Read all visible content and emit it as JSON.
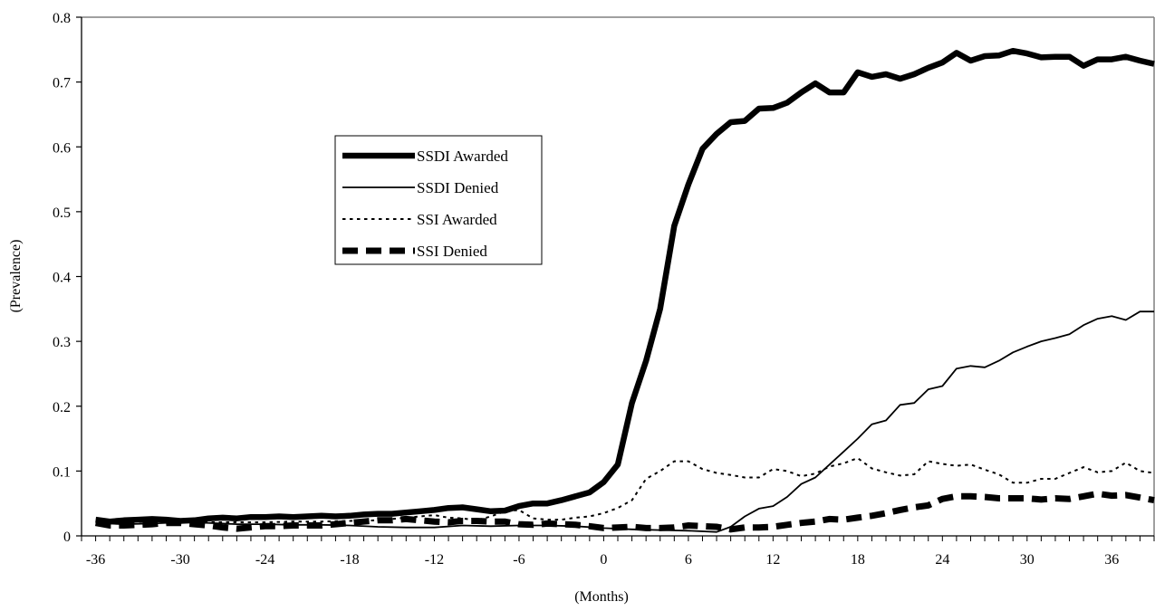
{
  "chart_data": {
    "type": "line",
    "xlabel": "(Months)",
    "ylabel": "(Prevalence)",
    "xlim": [
      -37,
      39
    ],
    "ylim": [
      0,
      0.8
    ],
    "x_ticks": [
      -36,
      -30,
      -24,
      -18,
      -12,
      -6,
      0,
      6,
      12,
      18,
      24,
      30,
      36
    ],
    "x_tick_labels": [
      "-36",
      "-30",
      "-24",
      "-18",
      "-12",
      "-6",
      "0",
      "6",
      "12",
      "18",
      "24",
      "30",
      "36"
    ],
    "y_ticks": [
      0,
      0.1,
      0.2,
      0.3,
      0.4,
      0.5,
      0.6,
      0.7,
      0.8
    ],
    "y_tick_labels": [
      "0",
      "0.1",
      "0.2",
      "0.3",
      "0.4",
      "0.5",
      "0.6",
      "0.7",
      "0.8"
    ],
    "grid": false,
    "legend_position": "upper-left-center",
    "series": [
      {
        "name": "SSDI Awarded",
        "style": "thick-solid",
        "x": [
          -36,
          -35,
          -34,
          -33,
          -32,
          -31,
          -30,
          -29,
          -28,
          -27,
          -26,
          -25,
          -24,
          -23,
          -22,
          -21,
          -20,
          -19,
          -18,
          -17,
          -16,
          -15,
          -14,
          -13,
          -12,
          -11,
          -10,
          -9,
          -8,
          -7,
          -6,
          -5,
          -4,
          -3,
          -2,
          -1,
          0,
          1,
          2,
          3,
          4,
          5,
          6,
          7,
          8,
          9,
          10,
          11,
          12,
          13,
          14,
          15,
          16,
          17,
          18,
          19,
          20,
          21,
          22,
          23,
          24,
          25,
          26,
          27,
          28,
          29,
          30,
          31,
          32,
          33,
          34,
          35,
          36,
          37,
          38,
          39
        ],
        "y": [
          0.025,
          0.022,
          0.024,
          0.025,
          0.026,
          0.025,
          0.023,
          0.024,
          0.027,
          0.028,
          0.027,
          0.029,
          0.029,
          0.03,
          0.029,
          0.03,
          0.031,
          0.03,
          0.031,
          0.033,
          0.034,
          0.034,
          0.036,
          0.038,
          0.04,
          0.043,
          0.044,
          0.041,
          0.038,
          0.039,
          0.046,
          0.05,
          0.05,
          0.055,
          0.061,
          0.067,
          0.083,
          0.11,
          0.205,
          0.27,
          0.35,
          0.478,
          0.542,
          0.597,
          0.62,
          0.638,
          0.64,
          0.659,
          0.66,
          0.668,
          0.684,
          0.698,
          0.684,
          0.684,
          0.715,
          0.708,
          0.712,
          0.705,
          0.712,
          0.722,
          0.73,
          0.745,
          0.733,
          0.74,
          0.741,
          0.748,
          0.744,
          0.738,
          0.739,
          0.739,
          0.725,
          0.735,
          0.735,
          0.739,
          0.733,
          0.728
        ]
      },
      {
        "name": "SSDI Denied",
        "style": "thin-solid",
        "x": [
          -36,
          -34,
          -32,
          -30,
          -28,
          -26,
          -24,
          -22,
          -20,
          -18,
          -16,
          -14,
          -12,
          -10,
          -8,
          -6,
          -4,
          -2,
          0,
          2,
          4,
          6,
          8,
          9,
          10,
          11,
          12,
          13,
          14,
          15,
          16,
          17,
          18,
          19,
          20,
          21,
          22,
          23,
          24,
          25,
          26,
          27,
          28,
          29,
          30,
          31,
          32,
          33,
          34,
          35,
          36,
          37,
          38,
          39
        ],
        "y": [
          0.02,
          0.018,
          0.019,
          0.021,
          0.02,
          0.018,
          0.018,
          0.017,
          0.017,
          0.016,
          0.014,
          0.013,
          0.013,
          0.016,
          0.015,
          0.016,
          0.016,
          0.015,
          0.012,
          0.01,
          0.009,
          0.008,
          0.006,
          0.014,
          0.03,
          0.042,
          0.046,
          0.06,
          0.08,
          0.09,
          0.11,
          0.13,
          0.15,
          0.172,
          0.178,
          0.202,
          0.205,
          0.226,
          0.231,
          0.258,
          0.262,
          0.26,
          0.27,
          0.283,
          0.292,
          0.3,
          0.305,
          0.311,
          0.325,
          0.335,
          0.339,
          0.333,
          0.346,
          0.346
        ]
      },
      {
        "name": "SSI Awarded",
        "style": "dotted",
        "x": [
          -36,
          -34,
          -32,
          -30,
          -28,
          -26,
          -24,
          -22,
          -20,
          -18,
          -16,
          -14,
          -13,
          -12,
          -11,
          -10,
          -9,
          -8,
          -7,
          -6,
          -5,
          -4,
          -3,
          -2,
          -1,
          0,
          1,
          2,
          3,
          4,
          5,
          6,
          7,
          8,
          9,
          10,
          11,
          12,
          13,
          14,
          15,
          16,
          17,
          18,
          19,
          20,
          21,
          22,
          23,
          24,
          25,
          26,
          27,
          28,
          29,
          30,
          31,
          32,
          33,
          34,
          35,
          36,
          37,
          38,
          39
        ],
        "y": [
          0.022,
          0.021,
          0.022,
          0.022,
          0.021,
          0.021,
          0.021,
          0.022,
          0.022,
          0.023,
          0.024,
          0.028,
          0.03,
          0.032,
          0.028,
          0.027,
          0.024,
          0.03,
          0.038,
          0.04,
          0.027,
          0.025,
          0.025,
          0.028,
          0.03,
          0.035,
          0.043,
          0.055,
          0.088,
          0.1,
          0.115,
          0.115,
          0.103,
          0.097,
          0.094,
          0.09,
          0.09,
          0.103,
          0.1,
          0.092,
          0.096,
          0.107,
          0.112,
          0.12,
          0.104,
          0.098,
          0.093,
          0.095,
          0.115,
          0.111,
          0.108,
          0.11,
          0.102,
          0.095,
          0.082,
          0.082,
          0.088,
          0.088,
          0.097,
          0.106,
          0.098,
          0.1,
          0.113,
          0.1,
          0.097
        ]
      },
      {
        "name": "SSI Denied",
        "style": "thick-dashed",
        "x": [
          -36,
          -35,
          -34,
          -33,
          -32,
          -31,
          -30,
          -29,
          -28,
          -27,
          -26,
          -25,
          -24,
          -23,
          -22,
          -21,
          -20,
          -19,
          -18,
          -17,
          -16,
          -15,
          -14,
          -13,
          -12,
          -11,
          -10,
          -9,
          -8,
          -7,
          -6,
          -5,
          -4,
          -3,
          -2,
          -1,
          0,
          1,
          2,
          3,
          4,
          5,
          6,
          7,
          8,
          9,
          10,
          11,
          12,
          13,
          14,
          15,
          16,
          17,
          18,
          19,
          20,
          21,
          22,
          23,
          24,
          25,
          26,
          27,
          28,
          29,
          30,
          31,
          32,
          33,
          34,
          35,
          36,
          37,
          38,
          39
        ],
        "y": [
          0.02,
          0.016,
          0.016,
          0.017,
          0.018,
          0.02,
          0.02,
          0.018,
          0.016,
          0.013,
          0.011,
          0.013,
          0.015,
          0.015,
          0.016,
          0.016,
          0.016,
          0.018,
          0.02,
          0.022,
          0.024,
          0.024,
          0.026,
          0.024,
          0.022,
          0.021,
          0.023,
          0.023,
          0.022,
          0.022,
          0.018,
          0.017,
          0.019,
          0.018,
          0.017,
          0.015,
          0.012,
          0.013,
          0.014,
          0.012,
          0.012,
          0.013,
          0.016,
          0.015,
          0.014,
          0.01,
          0.013,
          0.013,
          0.014,
          0.017,
          0.02,
          0.022,
          0.026,
          0.025,
          0.028,
          0.031,
          0.035,
          0.04,
          0.044,
          0.047,
          0.057,
          0.061,
          0.061,
          0.06,
          0.058,
          0.058,
          0.058,
          0.056,
          0.058,
          0.057,
          0.061,
          0.065,
          0.062,
          0.063,
          0.059,
          0.055
        ]
      }
    ]
  }
}
